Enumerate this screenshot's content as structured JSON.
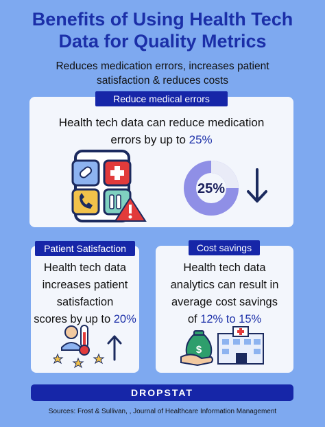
{
  "title_line1": "Benefits of Using Health Tech",
  "title_line2": "Data for Quality Metrics",
  "subtitle_line1": "Reduces medication errors, increases patient",
  "subtitle_line2": "satisfaction & reduces costs",
  "section1": {
    "tag": "Reduce medical errors",
    "text_line1": "Health tech data can reduce medication",
    "text_line2_prefix": "errors by up to ",
    "text_line2_value": "25%",
    "donut_label": "25%",
    "donut_fraction": 0.25,
    "arrow_icon": "arrow-down-icon"
  },
  "section2": {
    "tag": "Patient Satisfaction",
    "lines": [
      "Health tech data",
      "increases patient",
      "satisfaction"
    ],
    "last_prefix": "scores by up to ",
    "last_value": "20%",
    "arrow_icon": "arrow-up-icon"
  },
  "section3": {
    "tag": "Cost savings",
    "lines": [
      "Health tech data",
      "analytics can result in",
      "average cost savings"
    ],
    "last_prefix": "of ",
    "last_value": "12% to 15%"
  },
  "brand": "DROPSTAT",
  "sources": "Sources: Frost & Sullivan, , Journal of Healthcare Information Management",
  "colors": {
    "background": "#7ea9f0",
    "accent": "#1b2fa8",
    "tag": "#1626a8",
    "card": "#f3f6fc",
    "donut_ring": "#8f8fe6"
  }
}
